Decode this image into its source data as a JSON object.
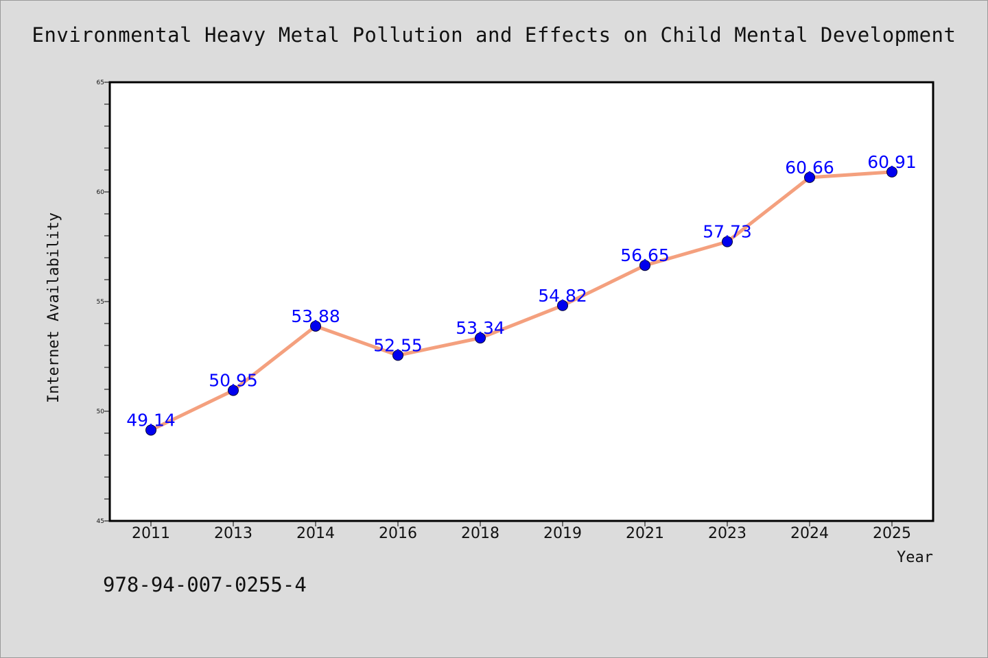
{
  "chart_data": {
    "type": "line",
    "title": "Environmental Heavy Metal Pollution and Effects on Child Mental Development",
    "xlabel": "Year",
    "ylabel": "Internet Availability",
    "categories": [
      "2011",
      "2013",
      "2014",
      "2016",
      "2018",
      "2019",
      "2021",
      "2023",
      "2024",
      "2025"
    ],
    "series": [
      {
        "values": [
          49.14,
          50.95,
          53.88,
          52.55,
          53.34,
          54.82,
          56.65,
          57.73,
          60.66,
          60.91
        ],
        "labels": [
          "49.14",
          "50.95",
          "53.88",
          "52.55",
          "53.34",
          "54.82",
          "56.65",
          "57.73",
          "60.66",
          "60.91"
        ]
      }
    ],
    "ylim": [
      45,
      65
    ],
    "yticks": [
      "45",
      "50",
      "55",
      "60",
      "65"
    ],
    "y_minor_step": 1,
    "grid": false,
    "legend": "none",
    "line_color": "#f4a07e",
    "marker_color": "#0000ee",
    "label_color": "#0000ff"
  },
  "footer": {
    "isbn": "978-94-007-0255-4"
  }
}
